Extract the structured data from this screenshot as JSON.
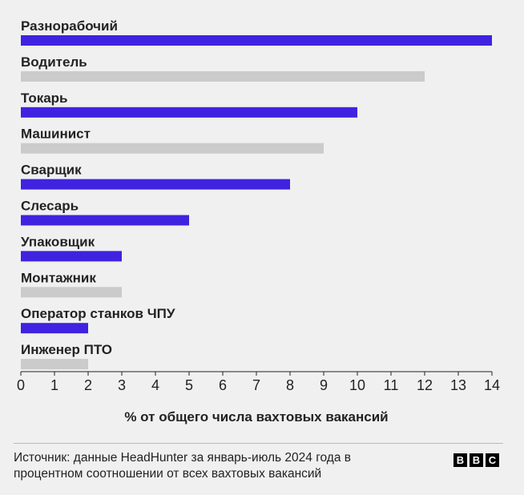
{
  "chart_data": {
    "type": "bar",
    "orientation": "horizontal",
    "categories": [
      "Разнорабочий",
      "Водитель",
      "Токарь",
      "Машинист",
      "Сварщик",
      "Слесарь",
      "Упаковщик",
      "Монтажник",
      "Оператор станков ЧПУ",
      "Инженер ПТО"
    ],
    "values": [
      14,
      12,
      10,
      9,
      8,
      5,
      3,
      3,
      2,
      2
    ],
    "highlighted": [
      true,
      false,
      true,
      false,
      true,
      true,
      true,
      false,
      true,
      false
    ],
    "colors": {
      "highlight": "#3f23e0",
      "muted": "#cbcbcb"
    },
    "xlabel": "% от общего числа вахтовых вакансий",
    "xlim": [
      0,
      14
    ],
    "xticks": [
      0,
      1,
      2,
      3,
      4,
      5,
      6,
      7,
      8,
      9,
      10,
      11,
      12,
      13,
      14
    ],
    "grid": false
  },
  "footer": {
    "source_line1": "Источник: данные HeadHunter за январь-июль 2024 года в",
    "source_line2": "процентном соотношении от всех вахтовых вакансий",
    "logo_letters": [
      "B",
      "B",
      "C"
    ]
  }
}
